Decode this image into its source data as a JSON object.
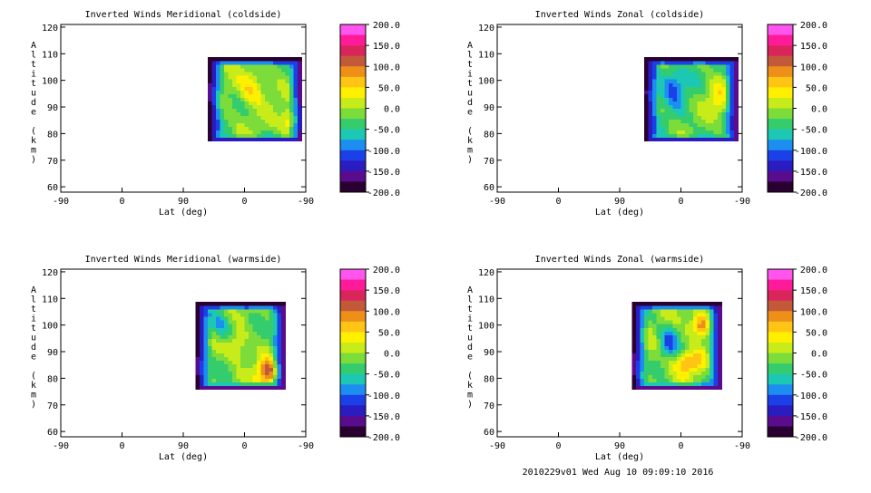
{
  "footer_text": "2010229v01 Wed Aug 10 09:09:10 2016",
  "colorbar": {
    "ticks": [
      "200.0",
      "150.0",
      "100.0",
      "50.0",
      "0.0",
      "-50.0",
      "-100.0",
      "-150.0",
      "-200.0"
    ],
    "colors": [
      "#ff55ee",
      "#ff1a99",
      "#d9245c",
      "#c25a3a",
      "#ee8f1a",
      "#ffc414",
      "#fff000",
      "#c8ec1a",
      "#7cdc3a",
      "#34cc6c",
      "#1cc8b4",
      "#1c8ef0",
      "#1c40e8",
      "#2a1cc0",
      "#5a0c8e",
      "#2a0030"
    ]
  },
  "chart_data": [
    {
      "type": "heatmap",
      "title": "Inverted Winds Meridional (coldside)",
      "xlabel": "Lat (deg)",
      "ylabel": "Altitude (km)",
      "xticks": [
        "-90",
        "0",
        "90",
        "0",
        "-90"
      ],
      "yticks": [
        "60",
        "70",
        "80",
        "90",
        "100",
        "110",
        "120"
      ],
      "ylim": [
        58,
        121
      ],
      "value_range": [
        -200,
        200
      ]
    },
    {
      "type": "heatmap",
      "title": "Inverted Winds Zonal (coldside)",
      "xlabel": "Lat (deg)",
      "ylabel": "Altitude (km)",
      "xticks": [
        "-90",
        "0",
        "90",
        "0",
        "-90"
      ],
      "yticks": [
        "60",
        "70",
        "80",
        "90",
        "100",
        "110",
        "120"
      ],
      "ylim": [
        58,
        121
      ],
      "value_range": [
        -200,
        200
      ]
    },
    {
      "type": "heatmap",
      "title": "Inverted Winds Meridional (warmside)",
      "xlabel": "Lat (deg)",
      "ylabel": "Altitude (km)",
      "xticks": [
        "-90",
        "0",
        "90",
        "0",
        "-90"
      ],
      "yticks": [
        "60",
        "70",
        "80",
        "90",
        "100",
        "110",
        "120"
      ],
      "ylim": [
        58,
        121
      ],
      "value_range": [
        -200,
        200
      ]
    },
    {
      "type": "heatmap",
      "title": "Inverted Winds Zonal (warmside)",
      "xlabel": "Lat (deg)",
      "ylabel": "Altitude (km)",
      "xticks": [
        "-90",
        "0",
        "90",
        "0",
        "-90"
      ],
      "yticks": [
        "60",
        "70",
        "80",
        "90",
        "100",
        "110",
        "120"
      ],
      "ylim": [
        58,
        121
      ],
      "value_range": [
        -200,
        200
      ]
    }
  ]
}
